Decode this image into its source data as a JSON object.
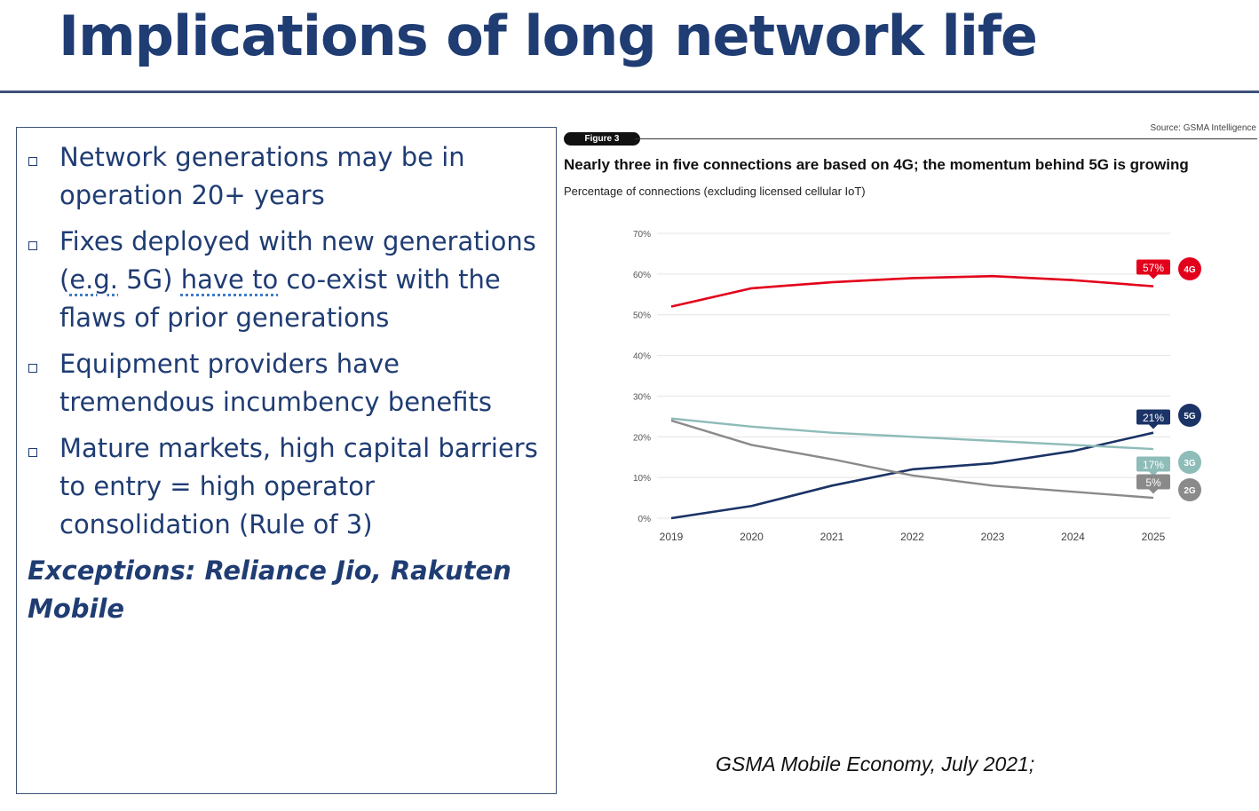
{
  "slide": {
    "title": "Implications of long network life",
    "bullets": [
      {
        "lines": [
          "Network generations may be in",
          "operation 20+ years"
        ]
      },
      {
        "lines": [
          "Fixes deployed with new generations",
          "(e.g. 5G) have to co-exist with the",
          "flaws of prior generations"
        ]
      },
      {
        "lines": [
          "Equipment providers have",
          "tremendous incumbency benefits"
        ]
      },
      {
        "lines": [
          "Mature markets, high capital barriers",
          "to entry = high operator",
          "consolidation (Rule of 3)"
        ]
      }
    ],
    "exceptions_lines": [
      "Exceptions: Reliance Jio, Rakuten",
      "Mobile"
    ],
    "citation": "GSMA Mobile Economy, July 2021;"
  },
  "figure": {
    "label": "Figure 3",
    "source": "Source: GSMA Intelligence"
  },
  "chart_data": {
    "type": "line",
    "title": "Nearly three in five connections are based on 4G; the momentum behind 5G is growing",
    "subtitle": "Percentage of connections (excluding licensed cellular IoT)",
    "xlabel": "",
    "ylabel": "",
    "x": [
      2019,
      2020,
      2021,
      2022,
      2023,
      2024,
      2025
    ],
    "ylim": [
      0,
      70
    ],
    "yticks": [
      0,
      10,
      20,
      30,
      40,
      50,
      60,
      70
    ],
    "ytick_labels": [
      "0%",
      "10%",
      "20%",
      "30%",
      "40%",
      "50%",
      "60%",
      "70%"
    ],
    "grid": true,
    "series": [
      {
        "name": "4G",
        "color": "#e3001b",
        "values": [
          52,
          56.5,
          58,
          59,
          59.5,
          58.5,
          57
        ],
        "end_label": "57%"
      },
      {
        "name": "5G",
        "color": "#1b3366",
        "values": [
          0,
          3,
          8,
          12,
          13.5,
          16.5,
          21
        ],
        "end_label": "21%"
      },
      {
        "name": "3G",
        "color": "#8ebcb8",
        "values": [
          24.5,
          22.5,
          21,
          20,
          19,
          18,
          17
        ],
        "end_label": "17%"
      },
      {
        "name": "2G",
        "color": "#8a8a8a",
        "values": [
          24,
          18,
          14.5,
          10.5,
          8,
          6.5,
          5
        ],
        "end_label": "5%"
      }
    ]
  }
}
